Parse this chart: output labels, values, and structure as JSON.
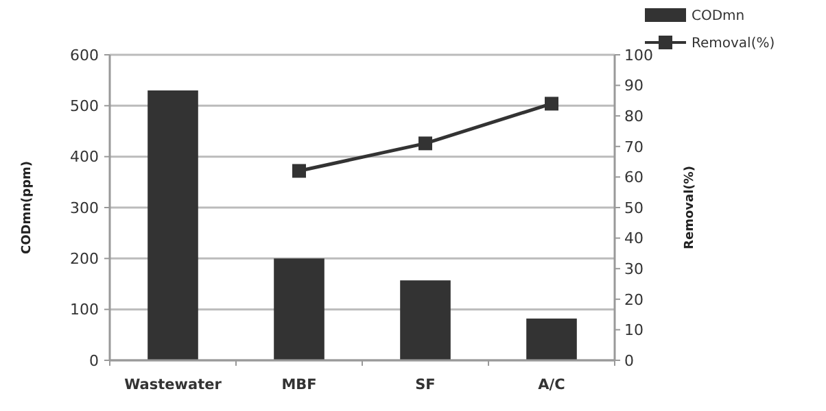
{
  "chart_data": {
    "type": "bar",
    "categories": [
      "Wastewater",
      "MBF",
      "SF",
      "A/C"
    ],
    "ylabel": "CODmn(ppm)",
    "y2label": "Removal(%)",
    "series": [
      {
        "name": "CODmn",
        "color": "#333333",
        "values": [
          530,
          200,
          157,
          82
        ]
      },
      {
        "name": "Removal(%)",
        "type": "line",
        "axis": "y2",
        "color": "#333333",
        "values": [
          null,
          62,
          71,
          84
        ]
      }
    ],
    "ylim": [
      0,
      600
    ],
    "yticks": [
      0,
      100,
      200,
      300,
      400,
      500,
      600
    ],
    "y2lim": [
      0,
      100
    ],
    "y2ticks": [
      0,
      10,
      20,
      30,
      40,
      50,
      60,
      70,
      80,
      90,
      100
    ],
    "grid": "y",
    "legend": "top right",
    "marker": "square"
  }
}
